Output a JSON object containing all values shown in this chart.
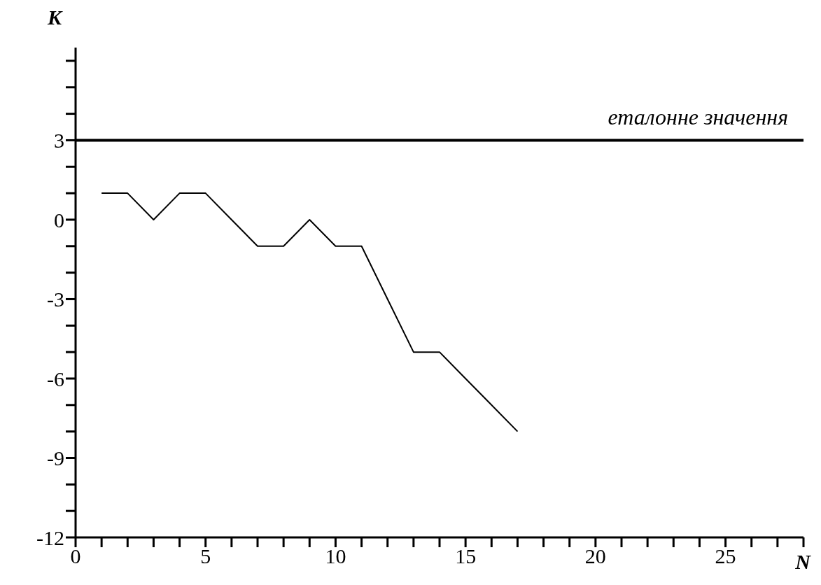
{
  "chart_data": {
    "type": "line",
    "xlabel": "N",
    "ylabel": "K",
    "x": [
      1,
      2,
      3,
      4,
      5,
      6,
      7,
      8,
      9,
      10,
      11,
      12,
      13,
      14,
      15,
      16,
      17
    ],
    "series": [
      {
        "color": "#000000",
        "values": [
          1,
          1,
          0,
          1,
          1,
          0,
          -1,
          -1,
          0,
          -1,
          -1,
          -3,
          -5,
          -5,
          -6,
          -7,
          -8
        ]
      }
    ],
    "xlim": [
      0,
      28
    ],
    "xticks": [
      0,
      {
        "value": 1,
        "label": null
      },
      {
        "value": 2,
        "label": null
      },
      {
        "value": 3,
        "label": null
      },
      {
        "value": 4,
        "label": null
      },
      5,
      {
        "value": 6,
        "label": null
      },
      {
        "value": 7,
        "label": null
      },
      {
        "value": 8,
        "label": null
      },
      {
        "value": 9,
        "label": null
      },
      10,
      {
        "value": 11,
        "label": null
      },
      {
        "value": 12,
        "label": null
      },
      {
        "value": 13,
        "label": null
      },
      {
        "value": 14,
        "label": null
      },
      15,
      {
        "value": 16,
        "label": null
      },
      {
        "value": 17,
        "label": null
      },
      {
        "value": 18,
        "label": null
      },
      {
        "value": 19,
        "label": null
      },
      20,
      {
        "value": 21,
        "label": null
      },
      {
        "value": 22,
        "label": null
      },
      {
        "value": 23,
        "label": null
      },
      {
        "value": 24,
        "label": null
      },
      25,
      {
        "value": 26,
        "label": null
      },
      {
        "value": 27,
        "label": null
      },
      {
        "value": 28,
        "label": null
      }
    ],
    "ylim": [
      -12,
      6.5
    ],
    "yticks": [
      -12,
      {
        "value": -11,
        "label": null
      },
      {
        "value": -10,
        "label": null
      },
      -9,
      {
        "value": -8,
        "label": null
      },
      {
        "value": -7,
        "label": null
      },
      -6,
      {
        "value": -5,
        "label": null
      },
      {
        "value": -4,
        "label": null
      },
      -3,
      {
        "value": -2,
        "label": null
      },
      {
        "value": -1,
        "label": null
      },
      0,
      {
        "value": 1,
        "label": null
      },
      {
        "value": 2,
        "label": null
      },
      3,
      {
        "value": 4,
        "label": null
      },
      {
        "value": 5,
        "label": null
      },
      {
        "value": 6,
        "label": null
      }
    ],
    "ref_lines": [
      {
        "axis": "y",
        "value": 3,
        "label": "еталонне значення",
        "color": "#000000"
      }
    ],
    "grid": false,
    "legend": false,
    "marker": "none",
    "line_style": "solid"
  }
}
